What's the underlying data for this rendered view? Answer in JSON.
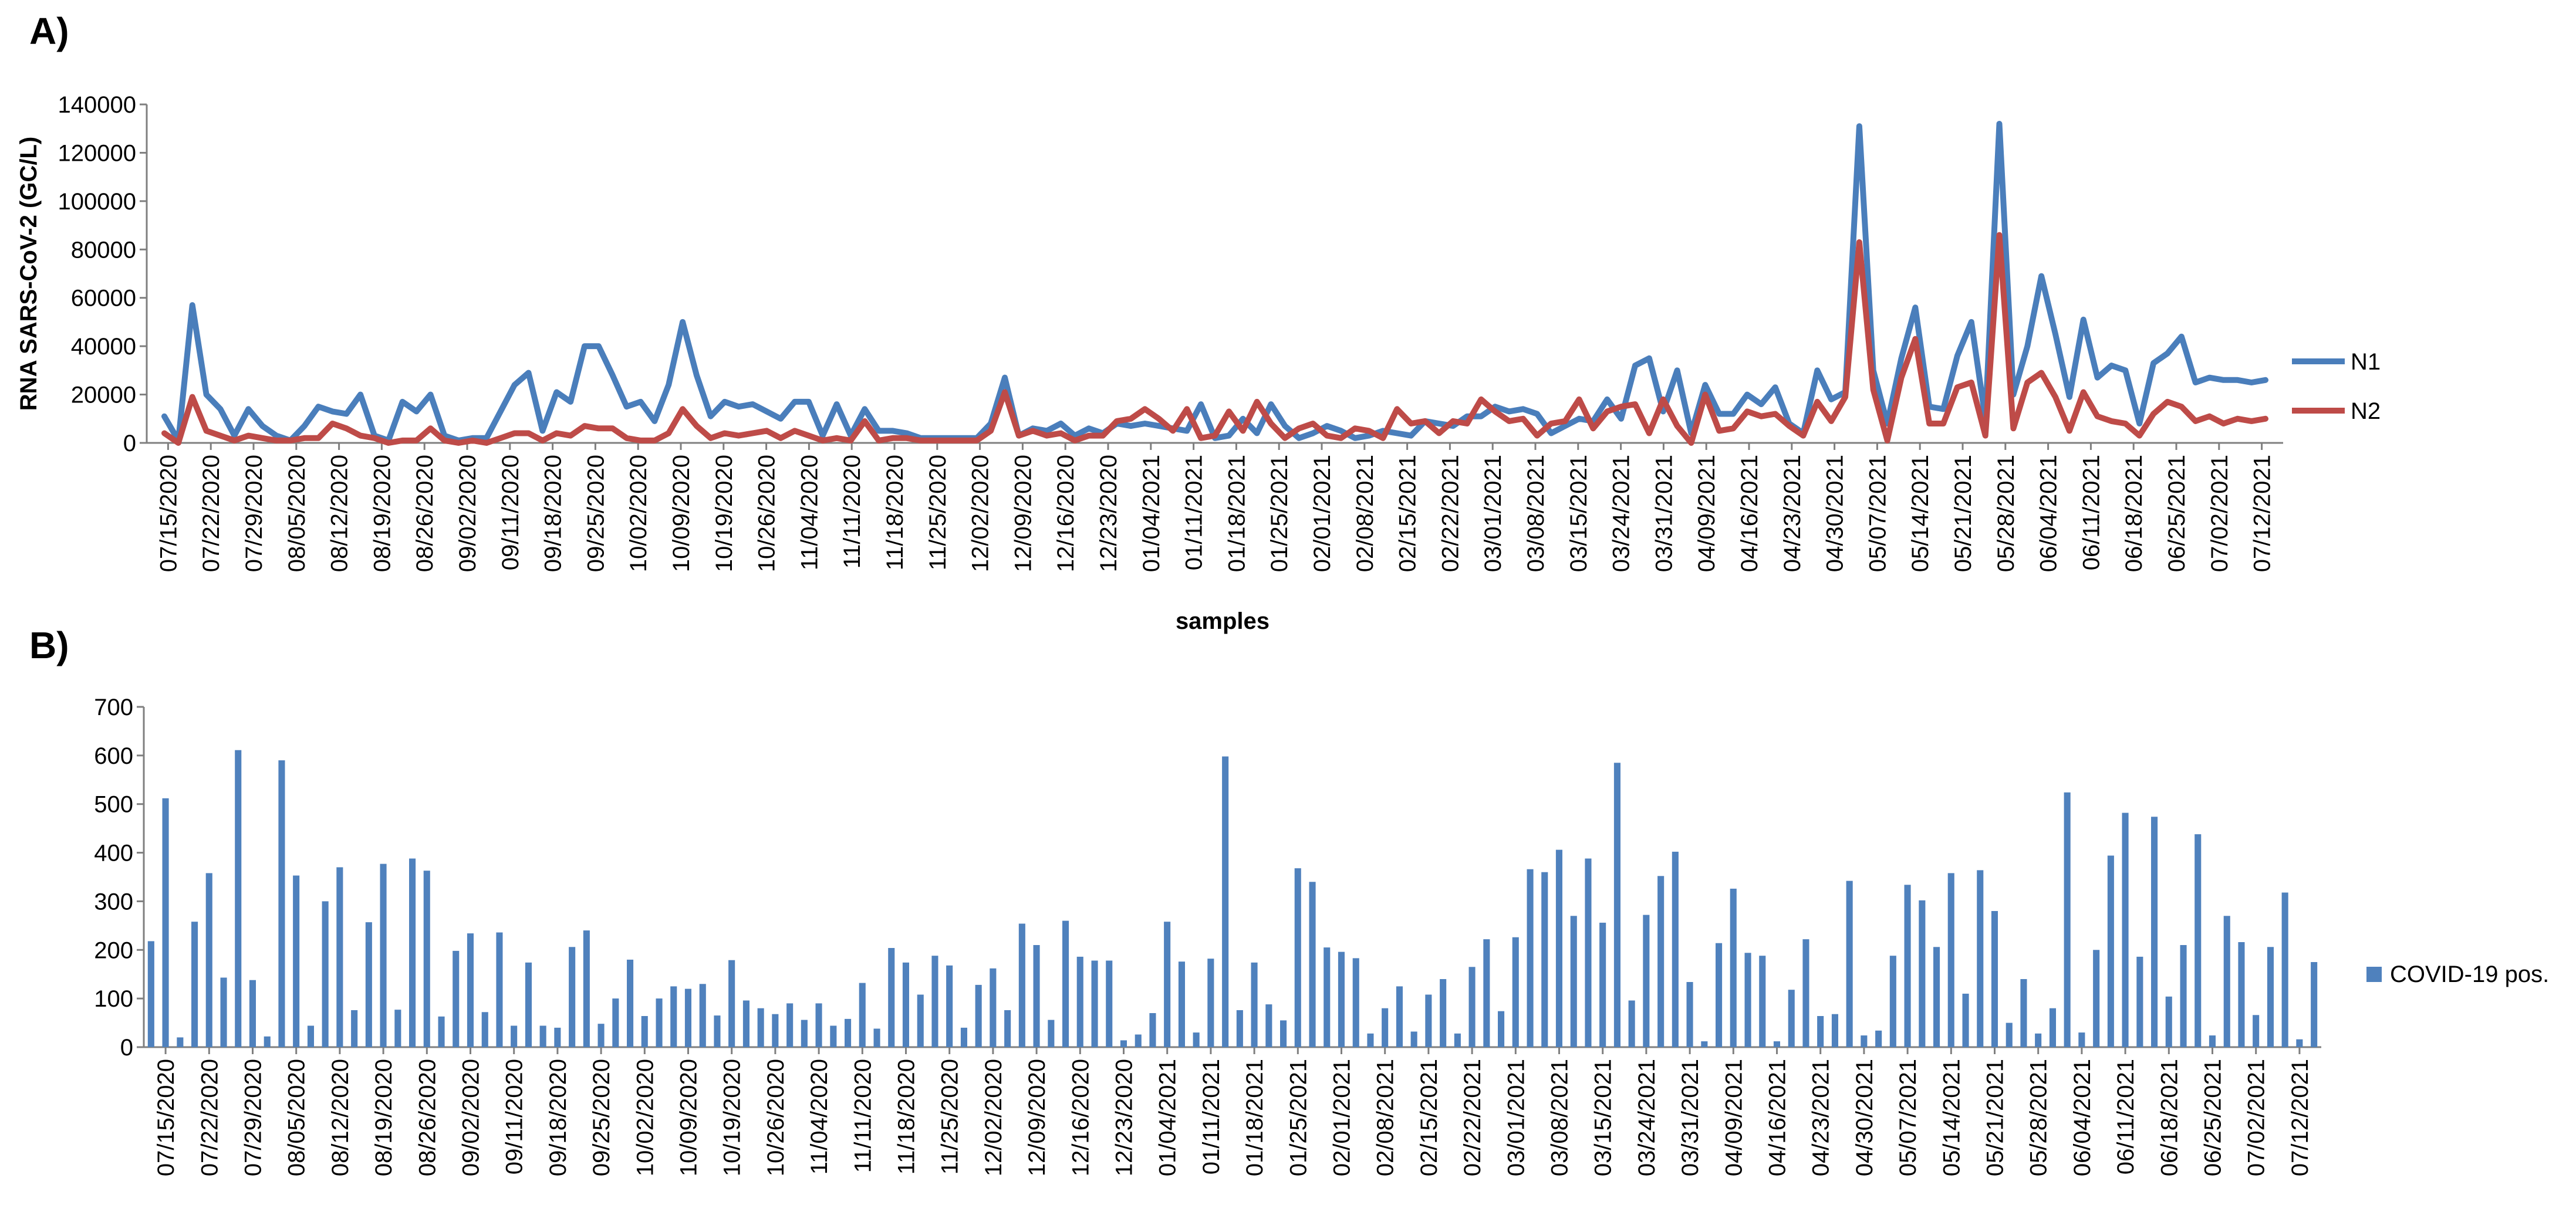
{
  "colors": {
    "n1": "#4a7ebb",
    "n2": "#be4b48",
    "bar": "#4f81bd",
    "axis": "#7f7f7f"
  },
  "chart_data": [
    {
      "panel": "A)",
      "type": "line",
      "title": "",
      "xlabel": "samples",
      "ylabel": "RNA SARS-CoV-2 (GC/L)",
      "ylim": [
        0,
        140000
      ],
      "yticks": [
        0,
        20000,
        40000,
        60000,
        80000,
        100000,
        120000,
        140000
      ],
      "legend_position": "right",
      "xtick_labels": [
        "07/15/2020",
        "07/22/2020",
        "07/29/2020",
        "08/05/2020",
        "08/12/2020",
        "08/19/2020",
        "08/26/2020",
        "09/02/2020",
        "09/11/2020",
        "09/18/2020",
        "09/25/2020",
        "10/02/2020",
        "10/09/2020",
        "10/19/2020",
        "10/26/2020",
        "11/04/2020",
        "11/11/2020",
        "11/18/2020",
        "11/25/2020",
        "12/02/2020",
        "12/09/2020",
        "12/16/2020",
        "12/23/2020",
        "01/04/2021",
        "01/11/2021",
        "01/18/2021",
        "01/25/2021",
        "02/01/2021",
        "02/08/2021",
        "02/15/2021",
        "02/22/2021",
        "03/01/2021",
        "03/08/2021",
        "03/15/2021",
        "03/24/2021",
        "03/31/2021",
        "04/09/2021",
        "04/16/2021",
        "04/23/2021",
        "04/30/2021",
        "05/07/2021",
        "05/14/2021",
        "05/21/2021",
        "05/28/2021",
        "06/04/2021",
        "06/11/2021",
        "06/18/2021",
        "06/25/2021",
        "07/02/2021",
        "07/12/2021"
      ],
      "series": [
        {
          "name": "N1",
          "values": [
            11000,
            1000,
            57000,
            20000,
            14000,
            3000,
            14000,
            7000,
            3000,
            1000,
            7000,
            15000,
            13000,
            12000,
            20000,
            3000,
            1000,
            17000,
            13000,
            20000,
            3000,
            1000,
            2000,
            2000,
            13000,
            24000,
            29000,
            5000,
            21000,
            17000,
            40000,
            40000,
            28000,
            15000,
            17000,
            9000,
            24000,
            50000,
            28000,
            11000,
            17000,
            15000,
            16000,
            13000,
            10000,
            17000,
            17000,
            3000,
            16000,
            3000,
            14000,
            5000,
            5000,
            4000,
            2000,
            2000,
            2000,
            2000,
            2000,
            8000,
            27000,
            3000,
            6000,
            5000,
            8000,
            3000,
            6000,
            4000,
            8000,
            7000,
            8000,
            7000,
            6000,
            5000,
            16000,
            2000,
            3000,
            10000,
            4000,
            16000,
            7000,
            2000,
            4000,
            7000,
            5000,
            2000,
            3000,
            5000,
            4000,
            3000,
            9000,
            8000,
            7000,
            11000,
            11000,
            15000,
            13000,
            14000,
            12000,
            4000,
            7000,
            10000,
            9000,
            18000,
            10000,
            32000,
            35000,
            13000,
            30000,
            4000,
            24000,
            12000,
            12000,
            20000,
            16000,
            23000,
            8000,
            4000,
            30000,
            18000,
            21000,
            131000,
            30000,
            8000,
            35000,
            56000,
            15000,
            14000,
            36000,
            50000,
            10000,
            132000,
            20000,
            40000,
            69000,
            45000,
            19000,
            51000,
            27000,
            32000,
            30000,
            8000,
            33000,
            37000,
            44000,
            25000,
            27000,
            26000,
            26000,
            25000,
            26000
          ]
        },
        {
          "name": "N2",
          "values": [
            4000,
            0,
            19000,
            5000,
            3000,
            1000,
            3000,
            2000,
            1000,
            1000,
            2000,
            2000,
            8000,
            6000,
            3000,
            2000,
            0,
            1000,
            1000,
            6000,
            1000,
            0,
            1000,
            0,
            2000,
            4000,
            4000,
            1000,
            4000,
            3000,
            7000,
            6000,
            6000,
            2000,
            1000,
            1000,
            4000,
            14000,
            7000,
            2000,
            4000,
            3000,
            4000,
            5000,
            2000,
            5000,
            3000,
            1000,
            2000,
            1000,
            9000,
            1000,
            2000,
            2000,
            1000,
            1000,
            1000,
            1000,
            1000,
            5000,
            21000,
            3000,
            5000,
            3000,
            4000,
            1000,
            3000,
            3000,
            9000,
            10000,
            14000,
            10000,
            5000,
            14000,
            2000,
            3000,
            13000,
            5000,
            17000,
            8000,
            2000,
            6000,
            8000,
            3000,
            2000,
            6000,
            5000,
            2000,
            14000,
            8000,
            9000,
            4000,
            9000,
            8000,
            18000,
            13000,
            9000,
            10000,
            3000,
            8000,
            9000,
            18000,
            6000,
            13000,
            15000,
            16000,
            4000,
            18000,
            7000,
            0,
            20000,
            5000,
            6000,
            13000,
            11000,
            12000,
            7000,
            3000,
            17000,
            9000,
            19000,
            83000,
            22000,
            1000,
            27000,
            43000,
            8000,
            8000,
            23000,
            25000,
            3000,
            86000,
            6000,
            25000,
            29000,
            19000,
            5000,
            21000,
            11000,
            9000,
            8000,
            3000,
            12000,
            17000,
            15000,
            9000,
            11000,
            8000,
            10000,
            9000,
            10000
          ]
        }
      ]
    },
    {
      "panel": "B)",
      "type": "bar",
      "title": "",
      "xlabel": "",
      "ylabel": "",
      "ylim": [
        0,
        700
      ],
      "yticks": [
        0,
        100,
        200,
        300,
        400,
        500,
        600,
        700
      ],
      "legend_position": "right",
      "xtick_labels": [
        "07/15/2020",
        "07/22/2020",
        "07/29/2020",
        "08/05/2020",
        "08/12/2020",
        "08/19/2020",
        "08/26/2020",
        "09/02/2020",
        "09/11/2020",
        "09/18/2020",
        "09/25/2020",
        "10/02/2020",
        "10/09/2020",
        "10/19/2020",
        "10/26/2020",
        "11/04/2020",
        "11/11/2020",
        "11/18/2020",
        "11/25/2020",
        "12/02/2020",
        "12/09/2020",
        "12/16/2020",
        "12/23/2020",
        "01/04/2021",
        "01/11/2021",
        "01/18/2021",
        "01/25/2021",
        "02/01/2021",
        "02/08/2021",
        "02/15/2021",
        "02/22/2021",
        "03/01/2021",
        "03/08/2021",
        "03/15/2021",
        "03/24/2021",
        "03/31/2021",
        "04/09/2021",
        "04/16/2021",
        "04/23/2021",
        "04/30/2021",
        "05/07/2021",
        "05/14/2021",
        "05/21/2021",
        "05/28/2021",
        "06/04/2021",
        "06/11/2021",
        "06/18/2021",
        "06/25/2021",
        "07/02/2021",
        "07/12/2021"
      ],
      "series": [
        {
          "name": "COVID-19 pos.",
          "values": [
            218,
            512,
            20,
            258,
            358,
            143,
            611,
            138,
            22,
            590,
            353,
            44,
            300,
            370,
            76,
            257,
            377,
            77,
            388,
            363,
            63,
            198,
            234,
            72,
            236,
            44,
            174,
            44,
            40,
            206,
            240,
            48,
            100,
            180,
            64,
            100,
            125,
            120,
            130,
            65,
            179,
            96,
            80,
            68,
            90,
            56,
            90,
            44,
            58,
            132,
            38,
            204,
            174,
            108,
            188,
            168,
            40,
            128,
            162,
            76,
            254,
            210,
            56,
            260,
            186,
            178,
            178,
            14,
            26,
            70,
            258,
            176,
            30,
            182,
            598,
            76,
            174,
            88,
            55,
            368,
            340,
            205,
            196,
            183,
            28,
            80,
            125,
            32,
            108,
            140,
            28,
            165,
            222,
            74,
            226,
            366,
            360,
            406,
            270,
            388,
            256,
            585,
            96,
            272,
            352,
            402,
            134,
            12,
            214,
            326,
            194,
            188,
            12,
            118,
            222,
            64,
            68,
            342,
            24,
            34,
            188,
            334,
            302,
            206,
            358,
            110,
            364,
            280,
            50,
            140,
            28,
            80,
            524,
            30,
            200,
            394,
            482,
            186,
            474,
            104,
            210,
            438,
            24,
            270,
            216,
            66,
            206,
            318,
            16,
            175
          ]
        }
      ]
    }
  ]
}
